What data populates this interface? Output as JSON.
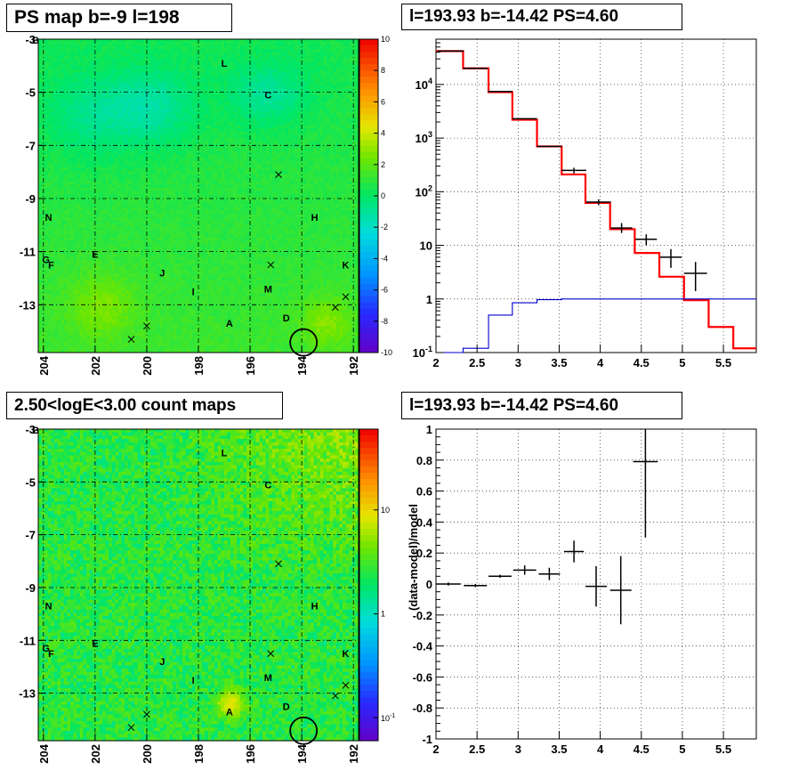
{
  "titles": {
    "ps_map": "PS map b=-9 l=198",
    "spectrum": "l=193.93 b=-14.42 PS=4.60",
    "count_maps": "2.50<logE<3.00 count maps",
    "residuals": "l=193.93 b=-14.42 PS=4.60"
  },
  "map_axes": {
    "y_ticks": [
      "-3",
      "-5",
      "-7",
      "-9",
      "-11",
      "-13"
    ],
    "y_tick_values": [
      -3,
      -5,
      -7,
      -9,
      -11,
      -13
    ],
    "x_ticks": [
      "204",
      "202",
      "200",
      "198",
      "196",
      "194",
      "192"
    ],
    "x_tick_values": [
      204,
      202,
      200,
      198,
      196,
      194,
      192
    ],
    "l_range": [
      204.2,
      191.8
    ],
    "b_range": [
      -3,
      -14.8
    ],
    "corner_label": "B"
  },
  "ps_colorbar": {
    "ticks": [
      "10",
      "8",
      "6",
      "4",
      "2",
      "0",
      "-2",
      "-4",
      "-6",
      "-8",
      "-10"
    ],
    "tick_values": [
      10,
      8,
      6,
      4,
      2,
      0,
      -2,
      -4,
      -6,
      -8,
      -10
    ],
    "range": [
      -10,
      10
    ]
  },
  "count_colorbar": {
    "ticks": [
      "10",
      "1",
      "10^-1"
    ],
    "tick_values": [
      10,
      1,
      0.1
    ],
    "range": [
      0.06,
      60
    ]
  },
  "sources": [
    {
      "label": "L",
      "l": 197.0,
      "b": -3.9
    },
    {
      "label": "C",
      "l": 195.3,
      "b": -5.1
    },
    {
      "label": "N",
      "l": 203.8,
      "b": -9.7
    },
    {
      "label": "H",
      "l": 193.5,
      "b": -9.7
    },
    {
      "label": "G",
      "l": 203.9,
      "b": -11.3
    },
    {
      "label": "F",
      "l": 203.7,
      "b": -11.5
    },
    {
      "label": "E",
      "l": 202.0,
      "b": -11.1
    },
    {
      "label": "K",
      "l": 192.3,
      "b": -11.5
    },
    {
      "label": "J",
      "l": 199.4,
      "b": -11.8
    },
    {
      "label": "M",
      "l": 195.3,
      "b": -12.4
    },
    {
      "label": "I",
      "l": 198.2,
      "b": -12.5
    },
    {
      "label": "D",
      "l": 194.6,
      "b": -13.5
    },
    {
      "label": "A",
      "l": 196.8,
      "b": -13.7
    }
  ],
  "crosses": [
    {
      "l": 194.9,
      "b": -8.1
    },
    {
      "l": 195.2,
      "b": -11.5
    },
    {
      "l": 192.3,
      "b": -12.7
    },
    {
      "l": 192.7,
      "b": -13.1
    },
    {
      "l": 200.0,
      "b": -13.8
    },
    {
      "l": 200.6,
      "b": -14.3
    }
  ],
  "target_circle": {
    "l": 193.93,
    "b": -14.42
  },
  "chart_data": [
    {
      "type": "line",
      "title": "l=193.93 b=-14.42 PS=4.60",
      "xlim": [
        2.0,
        5.9
      ],
      "ylim": [
        0.1,
        70000
      ],
      "yscale": "log",
      "grid": true,
      "x_ticks": [
        "2",
        "2.5",
        "3",
        "3.5",
        "4",
        "4.5",
        "5",
        "5.5"
      ],
      "x_tick_values": [
        2,
        2.5,
        3,
        3.5,
        4,
        4.5,
        5,
        5.5
      ],
      "y_ticks": [
        "10^-1",
        "1",
        "10",
        "10^2",
        "10^3",
        "10^4"
      ],
      "y_tick_values": [
        0.1,
        1,
        10,
        100,
        1000,
        10000
      ],
      "series": [
        {
          "color": "#ff0000",
          "edges": [
            2.0,
            2.33,
            2.64,
            2.93,
            3.23,
            3.53,
            3.82,
            4.12,
            4.42,
            4.72,
            5.02,
            5.32,
            5.62,
            5.9
          ],
          "values": [
            42000,
            20000,
            7200,
            2200,
            700,
            210,
            62,
            20,
            7.2,
            2.6,
            0.95,
            0.3,
            0.12
          ]
        },
        {
          "color": "#0000cc",
          "edges": [
            2.0,
            2.33,
            2.64,
            2.93,
            3.23,
            3.53,
            3.82,
            4.12,
            4.42,
            4.72,
            5.02,
            5.32,
            5.62,
            5.9
          ],
          "values": [
            0.1,
            0.12,
            0.5,
            0.85,
            0.97,
            1,
            1,
            1,
            1,
            1,
            1,
            1,
            1
          ]
        }
      ],
      "data_points": [
        {
          "x": 2.18,
          "y": 42000,
          "xerr": 0.16
        },
        {
          "x": 2.48,
          "y": 20000,
          "xerr": 0.15
        },
        {
          "x": 2.78,
          "y": 7400,
          "xerr": 0.15
        },
        {
          "x": 3.08,
          "y": 2300,
          "xerr": 0.15
        },
        {
          "x": 3.38,
          "y": 700,
          "xerr": 0.15
        },
        {
          "x": 3.68,
          "y": 250,
          "xerr": 0.15,
          "ylo": 220,
          "yhi": 280
        },
        {
          "x": 3.98,
          "y": 64,
          "xerr": 0.15,
          "ylo": 56,
          "yhi": 72
        },
        {
          "x": 4.26,
          "y": 21,
          "xerr": 0.13,
          "ylo": 17,
          "yhi": 26
        },
        {
          "x": 4.56,
          "y": 13,
          "xerr": 0.13,
          "ylo": 10,
          "yhi": 16
        },
        {
          "x": 4.86,
          "y": 6,
          "xerr": 0.13,
          "ylo": 3.8,
          "yhi": 8.5
        },
        {
          "x": 5.16,
          "y": 3,
          "xerr": 0.14,
          "ylo": 1.4,
          "yhi": 4.9
        }
      ]
    },
    {
      "type": "scatter",
      "title": "l=193.93 b=-14.42 PS=4.60",
      "ylabel": "(data-model)/model",
      "xlim": [
        2.0,
        5.9
      ],
      "ylim": [
        -1,
        1
      ],
      "grid": true,
      "x_ticks": [
        "2",
        "2.5",
        "3",
        "3.5",
        "4",
        "4.5",
        "5",
        "5.5"
      ],
      "x_tick_values": [
        2,
        2.5,
        3,
        3.5,
        4,
        4.5,
        5,
        5.5
      ],
      "y_ticks": [
        "1",
        "0.8",
        "0.6",
        "0.4",
        "0.2",
        "0",
        "-0.2",
        "-0.4",
        "-0.6",
        "-0.8",
        "-1"
      ],
      "y_tick_values": [
        1,
        0.8,
        0.6,
        0.4,
        0.2,
        0,
        -0.2,
        -0.4,
        -0.6,
        -0.8,
        -1
      ],
      "points": [
        {
          "x": 2.15,
          "y": 0.0,
          "xerr": 0.15,
          "yerr": 0.01
        },
        {
          "x": 2.48,
          "y": -0.01,
          "xerr": 0.14,
          "yerr": 0.01
        },
        {
          "x": 2.78,
          "y": 0.05,
          "xerr": 0.14,
          "yerr": 0.01
        },
        {
          "x": 3.08,
          "y": 0.09,
          "xerr": 0.14,
          "yerr": 0.03
        },
        {
          "x": 3.38,
          "y": 0.065,
          "xerr": 0.13,
          "yerr": 0.04
        },
        {
          "x": 3.68,
          "y": 0.21,
          "xerr": 0.12,
          "yerr": 0.07
        },
        {
          "x": 3.95,
          "y": -0.015,
          "xerr": 0.13,
          "yerr": 0.13
        },
        {
          "x": 4.25,
          "y": -0.04,
          "xerr": 0.13,
          "yerr": 0.22
        },
        {
          "x": 4.55,
          "y": 0.79,
          "xerr": 0.15,
          "yerr": 0.49
        }
      ]
    }
  ]
}
